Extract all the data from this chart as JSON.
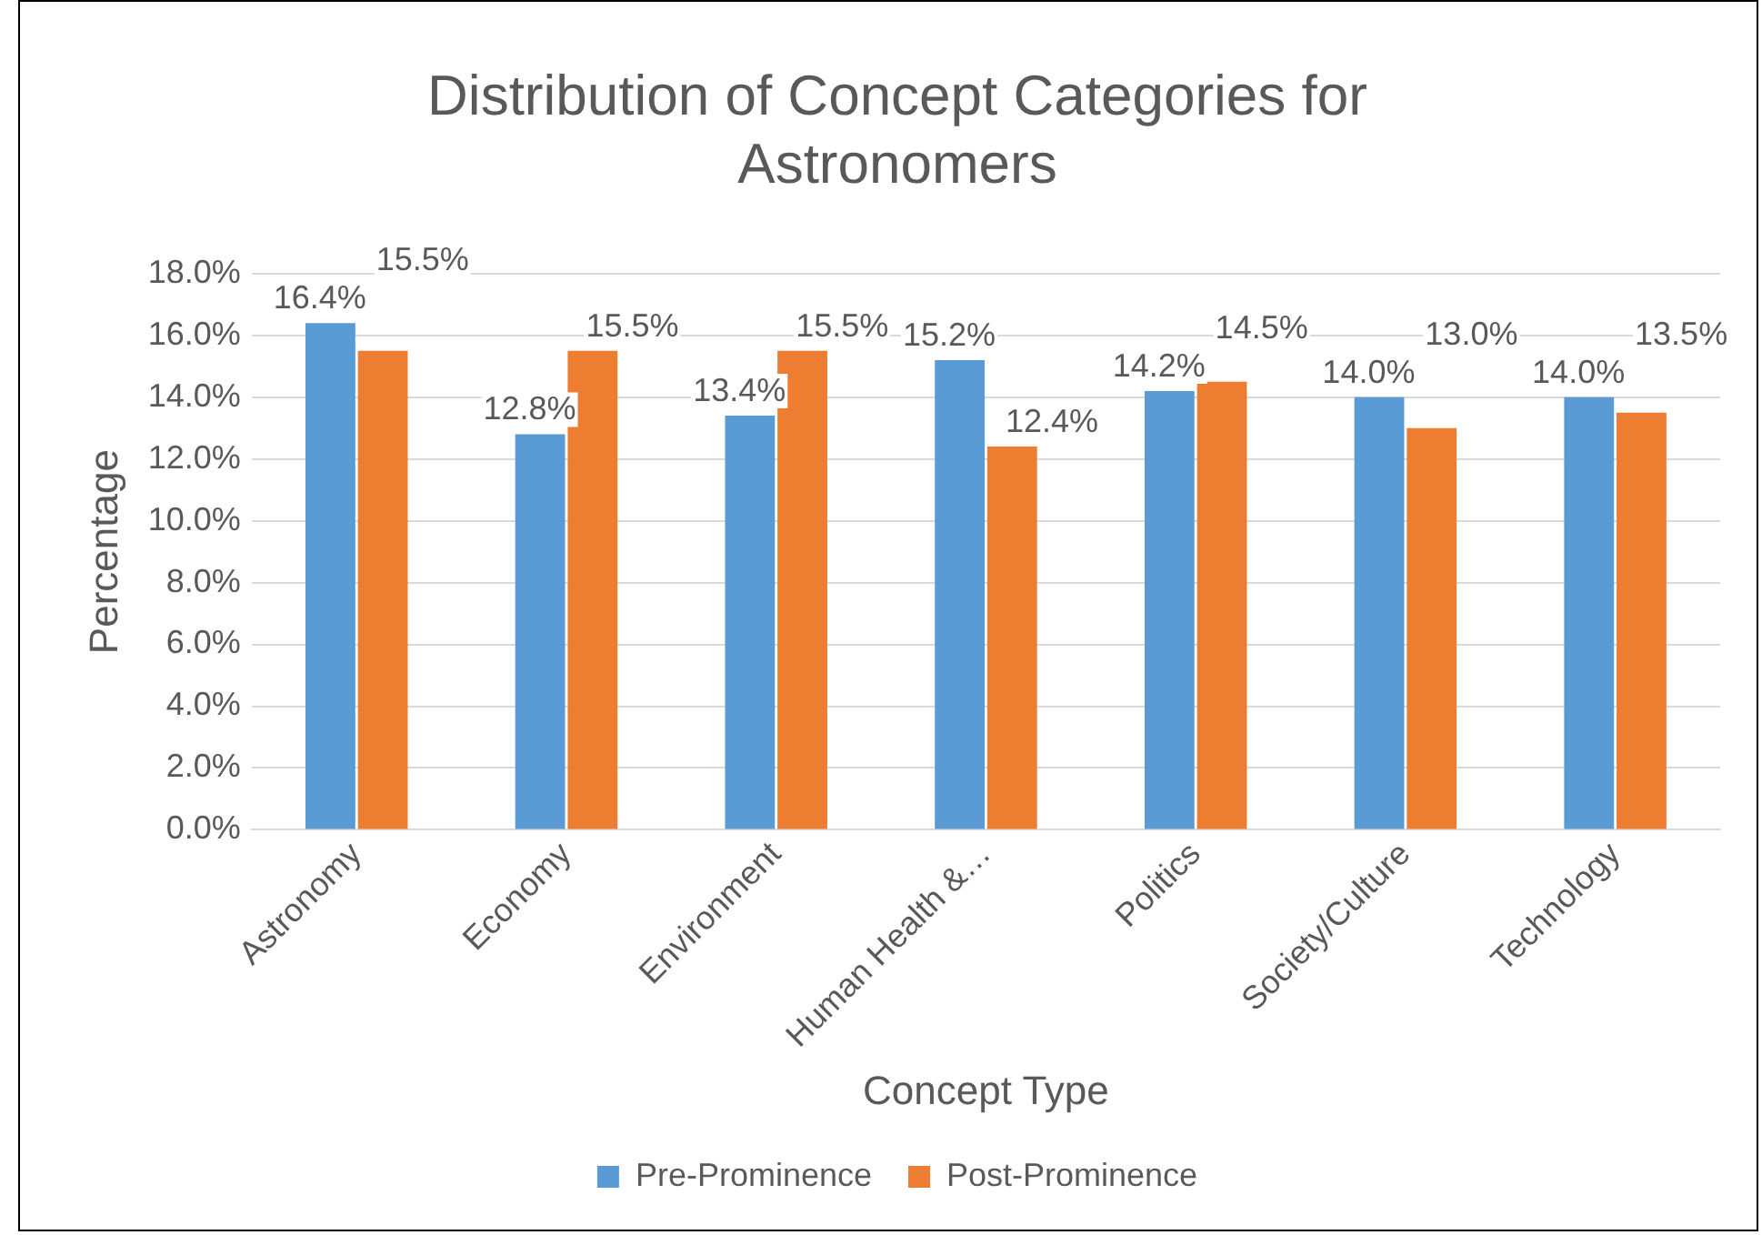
{
  "chart_data": {
    "type": "bar",
    "title": "Distribution of Concept Categories for Astronomers",
    "xlabel": "Concept Type",
    "ylabel": "Percentage",
    "categories": [
      "Astronomy",
      "Economy",
      "Environment",
      "Human Health &…",
      "Politics",
      "Society/Culture",
      "Technology"
    ],
    "series": [
      {
        "name": "Pre-Prominence",
        "color": "#5b9bd5",
        "values": [
          16.4,
          12.8,
          13.4,
          15.2,
          14.2,
          14.0,
          14.0
        ],
        "value_labels": [
          "16.4%",
          "12.8%",
          "13.4%",
          "15.2%",
          "14.2%",
          "14.0%",
          "14.0%"
        ]
      },
      {
        "name": "Post-Prominence",
        "color": "#ed7d31",
        "values": [
          15.5,
          15.5,
          15.5,
          12.4,
          14.5,
          13.0,
          13.5
        ],
        "value_labels": [
          "15.5%",
          "15.5%",
          "15.5%",
          "12.4%",
          "14.5%",
          "13.0%",
          "13.5%"
        ]
      }
    ],
    "ylim": [
      0,
      18
    ],
    "yticks": [
      {
        "value": 0,
        "label": "0.0%"
      },
      {
        "value": 2,
        "label": "2.0%"
      },
      {
        "value": 4,
        "label": "4.0%"
      },
      {
        "value": 6,
        "label": "6.0%"
      },
      {
        "value": 8,
        "label": "8.0%"
      },
      {
        "value": 10,
        "label": "10.0%"
      },
      {
        "value": 12,
        "label": "12.0%"
      },
      {
        "value": 14,
        "label": "14.0%"
      },
      {
        "value": 16,
        "label": "16.0%"
      },
      {
        "value": 18,
        "label": "18.0%"
      }
    ],
    "grid": "y",
    "legend": "bottom",
    "data_labels": true
  }
}
